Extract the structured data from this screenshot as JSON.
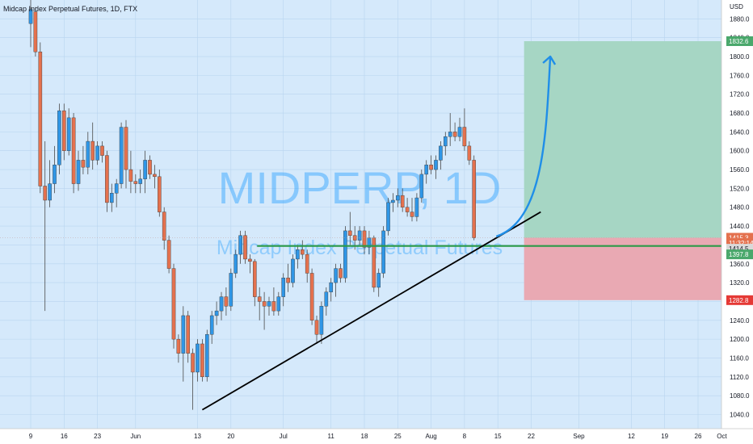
{
  "header": {
    "symbol_title": "Midcap Index Perpetual Futures, 1D, FTX",
    "currency": "USD"
  },
  "watermark": {
    "ticker": "MIDPERP, 1D",
    "name": "Midcap Index Perpetual Futures"
  },
  "colors": {
    "background": "#d5e9fb",
    "up_candle": "#2f96e6",
    "down_candle": "#e4714e",
    "profit_zone": "#a6d6c4",
    "loss_zone": "#e9a9b3",
    "trendline": "#000000",
    "support_line": "#2b9a48",
    "arrow": "#1f8ee8",
    "grid": "#b9d5ef"
  },
  "chart_data": {
    "type": "candlestick",
    "ylim": [
      1010,
      1920
    ],
    "y_ticks": [
      1040,
      1080,
      1120,
      1160,
      1200,
      1240,
      1280,
      1320,
      1360,
      1400,
      1440,
      1480,
      1520,
      1560,
      1600,
      1640,
      1680,
      1720,
      1760,
      1800,
      1840,
      1880
    ],
    "x_ticks": [
      {
        "label": "9",
        "bar": 0
      },
      {
        "label": "16",
        "bar": 7
      },
      {
        "label": "23",
        "bar": 14
      },
      {
        "label": "Jun",
        "bar": 22
      },
      {
        "label": "13",
        "bar": 35
      },
      {
        "label": "20",
        "bar": 42
      },
      {
        "label": "Jul",
        "bar": 53
      },
      {
        "label": "11",
        "bar": 63
      },
      {
        "label": "18",
        "bar": 70
      },
      {
        "label": "25",
        "bar": 77
      },
      {
        "label": "Aug",
        "bar": 84
      },
      {
        "label": "8",
        "bar": 91
      },
      {
        "label": "15",
        "bar": 98
      },
      {
        "label": "22",
        "bar": 105
      },
      {
        "label": "Sep",
        "bar": 115
      },
      {
        "label": "12",
        "bar": 126
      },
      {
        "label": "19",
        "bar": 133
      },
      {
        "label": "26",
        "bar": 140
      },
      {
        "label": "Oct",
        "bar": 145
      }
    ],
    "candles": [
      {
        "o": 1870,
        "h": 1920,
        "l": 1820,
        "c": 1900
      },
      {
        "o": 1895,
        "h": 1905,
        "l": 1800,
        "c": 1810
      },
      {
        "o": 1810,
        "h": 1830,
        "l": 1510,
        "c": 1525
      },
      {
        "o": 1525,
        "h": 1620,
        "l": 1260,
        "c": 1495
      },
      {
        "o": 1495,
        "h": 1580,
        "l": 1480,
        "c": 1530
      },
      {
        "o": 1530,
        "h": 1610,
        "l": 1510,
        "c": 1570
      },
      {
        "o": 1570,
        "h": 1700,
        "l": 1550,
        "c": 1685
      },
      {
        "o": 1685,
        "h": 1700,
        "l": 1580,
        "c": 1600
      },
      {
        "o": 1600,
        "h": 1690,
        "l": 1590,
        "c": 1670
      },
      {
        "o": 1670,
        "h": 1680,
        "l": 1510,
        "c": 1530
      },
      {
        "o": 1530,
        "h": 1600,
        "l": 1515,
        "c": 1580
      },
      {
        "o": 1580,
        "h": 1610,
        "l": 1550,
        "c": 1565
      },
      {
        "o": 1565,
        "h": 1640,
        "l": 1550,
        "c": 1620
      },
      {
        "o": 1620,
        "h": 1660,
        "l": 1560,
        "c": 1580
      },
      {
        "o": 1580,
        "h": 1620,
        "l": 1570,
        "c": 1610
      },
      {
        "o": 1610,
        "h": 1620,
        "l": 1575,
        "c": 1590
      },
      {
        "o": 1590,
        "h": 1600,
        "l": 1470,
        "c": 1490
      },
      {
        "o": 1490,
        "h": 1530,
        "l": 1470,
        "c": 1510
      },
      {
        "o": 1510,
        "h": 1540,
        "l": 1480,
        "c": 1530
      },
      {
        "o": 1530,
        "h": 1660,
        "l": 1520,
        "c": 1650
      },
      {
        "o": 1650,
        "h": 1665,
        "l": 1520,
        "c": 1560
      },
      {
        "o": 1560,
        "h": 1600,
        "l": 1510,
        "c": 1535
      },
      {
        "o": 1535,
        "h": 1550,
        "l": 1510,
        "c": 1530
      },
      {
        "o": 1530,
        "h": 1560,
        "l": 1510,
        "c": 1540
      },
      {
        "o": 1540,
        "h": 1600,
        "l": 1510,
        "c": 1580
      },
      {
        "o": 1580,
        "h": 1590,
        "l": 1540,
        "c": 1550
      },
      {
        "o": 1550,
        "h": 1570,
        "l": 1520,
        "c": 1545
      },
      {
        "o": 1545,
        "h": 1560,
        "l": 1460,
        "c": 1470
      },
      {
        "o": 1470,
        "h": 1480,
        "l": 1390,
        "c": 1410
      },
      {
        "o": 1410,
        "h": 1420,
        "l": 1340,
        "c": 1350
      },
      {
        "o": 1350,
        "h": 1360,
        "l": 1180,
        "c": 1200
      },
      {
        "o": 1200,
        "h": 1210,
        "l": 1150,
        "c": 1170
      },
      {
        "o": 1170,
        "h": 1270,
        "l": 1110,
        "c": 1250
      },
      {
        "o": 1250,
        "h": 1260,
        "l": 1150,
        "c": 1170
      },
      {
        "o": 1170,
        "h": 1180,
        "l": 1050,
        "c": 1130
      },
      {
        "o": 1130,
        "h": 1200,
        "l": 1110,
        "c": 1190
      },
      {
        "o": 1190,
        "h": 1200,
        "l": 1110,
        "c": 1120
      },
      {
        "o": 1120,
        "h": 1220,
        "l": 1110,
        "c": 1210
      },
      {
        "o": 1210,
        "h": 1260,
        "l": 1190,
        "c": 1250
      },
      {
        "o": 1250,
        "h": 1280,
        "l": 1230,
        "c": 1260
      },
      {
        "o": 1260,
        "h": 1300,
        "l": 1240,
        "c": 1290
      },
      {
        "o": 1290,
        "h": 1310,
        "l": 1250,
        "c": 1270
      },
      {
        "o": 1270,
        "h": 1350,
        "l": 1260,
        "c": 1340
      },
      {
        "o": 1340,
        "h": 1390,
        "l": 1330,
        "c": 1380
      },
      {
        "o": 1380,
        "h": 1430,
        "l": 1360,
        "c": 1420
      },
      {
        "o": 1420,
        "h": 1430,
        "l": 1360,
        "c": 1370
      },
      {
        "o": 1370,
        "h": 1380,
        "l": 1340,
        "c": 1365
      },
      {
        "o": 1365,
        "h": 1370,
        "l": 1270,
        "c": 1290
      },
      {
        "o": 1290,
        "h": 1310,
        "l": 1240,
        "c": 1280
      },
      {
        "o": 1280,
        "h": 1300,
        "l": 1220,
        "c": 1270
      },
      {
        "o": 1270,
        "h": 1290,
        "l": 1250,
        "c": 1280
      },
      {
        "o": 1280,
        "h": 1310,
        "l": 1250,
        "c": 1260
      },
      {
        "o": 1260,
        "h": 1300,
        "l": 1250,
        "c": 1290
      },
      {
        "o": 1290,
        "h": 1340,
        "l": 1270,
        "c": 1330
      },
      {
        "o": 1330,
        "h": 1360,
        "l": 1300,
        "c": 1320
      },
      {
        "o": 1320,
        "h": 1380,
        "l": 1310,
        "c": 1370
      },
      {
        "o": 1370,
        "h": 1400,
        "l": 1350,
        "c": 1390
      },
      {
        "o": 1390,
        "h": 1410,
        "l": 1370,
        "c": 1380
      },
      {
        "o": 1380,
        "h": 1390,
        "l": 1320,
        "c": 1340
      },
      {
        "o": 1340,
        "h": 1350,
        "l": 1230,
        "c": 1240
      },
      {
        "o": 1240,
        "h": 1250,
        "l": 1190,
        "c": 1210
      },
      {
        "o": 1210,
        "h": 1280,
        "l": 1190,
        "c": 1270
      },
      {
        "o": 1270,
        "h": 1310,
        "l": 1250,
        "c": 1300
      },
      {
        "o": 1300,
        "h": 1330,
        "l": 1280,
        "c": 1320
      },
      {
        "o": 1320,
        "h": 1360,
        "l": 1290,
        "c": 1350
      },
      {
        "o": 1350,
        "h": 1360,
        "l": 1320,
        "c": 1330
      },
      {
        "o": 1330,
        "h": 1440,
        "l": 1320,
        "c": 1430
      },
      {
        "o": 1430,
        "h": 1470,
        "l": 1400,
        "c": 1420
      },
      {
        "o": 1420,
        "h": 1440,
        "l": 1390,
        "c": 1410
      },
      {
        "o": 1410,
        "h": 1440,
        "l": 1400,
        "c": 1430
      },
      {
        "o": 1430,
        "h": 1440,
        "l": 1380,
        "c": 1395
      },
      {
        "o": 1395,
        "h": 1430,
        "l": 1380,
        "c": 1415
      },
      {
        "o": 1415,
        "h": 1420,
        "l": 1300,
        "c": 1310
      },
      {
        "o": 1310,
        "h": 1350,
        "l": 1290,
        "c": 1340
      },
      {
        "o": 1340,
        "h": 1440,
        "l": 1330,
        "c": 1430
      },
      {
        "o": 1430,
        "h": 1500,
        "l": 1420,
        "c": 1490
      },
      {
        "o": 1490,
        "h": 1510,
        "l": 1470,
        "c": 1495
      },
      {
        "o": 1495,
        "h": 1520,
        "l": 1480,
        "c": 1505
      },
      {
        "o": 1505,
        "h": 1520,
        "l": 1470,
        "c": 1480
      },
      {
        "o": 1480,
        "h": 1500,
        "l": 1460,
        "c": 1470
      },
      {
        "o": 1470,
        "h": 1500,
        "l": 1450,
        "c": 1460
      },
      {
        "o": 1460,
        "h": 1510,
        "l": 1450,
        "c": 1500
      },
      {
        "o": 1500,
        "h": 1560,
        "l": 1490,
        "c": 1550
      },
      {
        "o": 1550,
        "h": 1580,
        "l": 1530,
        "c": 1570
      },
      {
        "o": 1570,
        "h": 1590,
        "l": 1550,
        "c": 1560
      },
      {
        "o": 1560,
        "h": 1590,
        "l": 1540,
        "c": 1580
      },
      {
        "o": 1580,
        "h": 1620,
        "l": 1560,
        "c": 1610
      },
      {
        "o": 1610,
        "h": 1640,
        "l": 1590,
        "c": 1630
      },
      {
        "o": 1630,
        "h": 1680,
        "l": 1610,
        "c": 1640
      },
      {
        "o": 1640,
        "h": 1660,
        "l": 1620,
        "c": 1630
      },
      {
        "o": 1630,
        "h": 1670,
        "l": 1620,
        "c": 1650
      },
      {
        "o": 1650,
        "h": 1690,
        "l": 1600,
        "c": 1610
      },
      {
        "o": 1610,
        "h": 1620,
        "l": 1570,
        "c": 1580
      },
      {
        "o": 1580,
        "h": 1590,
        "l": 1410,
        "c": 1415
      }
    ],
    "annotations": {
      "profit_zone": {
        "top": 1832.6,
        "bottom": 1415.3
      },
      "loss_zone": {
        "top": 1415.3,
        "bottom": 1282.8
      },
      "support_level": 1397.8,
      "trendline": {
        "from": {
          "bar": 36,
          "price": 1050
        },
        "to": {
          "bar": 107,
          "price": 1470
        }
      },
      "projection_arrow": {
        "from": {
          "bar": 97,
          "price": 1418
        },
        "to": {
          "bar": 109,
          "price": 1800
        }
      }
    }
  },
  "price_labels": [
    {
      "text": "1832.6",
      "price": 1832.6,
      "color": "#4aa86c"
    },
    {
      "text": "1415.3",
      "price": 1415.3,
      "color": "#e4714e"
    },
    {
      "text": "11:32:14",
      "price": 1404,
      "color": "#e4714e"
    },
    {
      "text": "1414.5",
      "price": 1392,
      "color": "#d9d9d9"
    },
    {
      "text": "1397.8",
      "price": 1380,
      "color": "#4aa86c"
    },
    {
      "text": "1282.8",
      "price": 1282.8,
      "color": "#e53935"
    }
  ]
}
